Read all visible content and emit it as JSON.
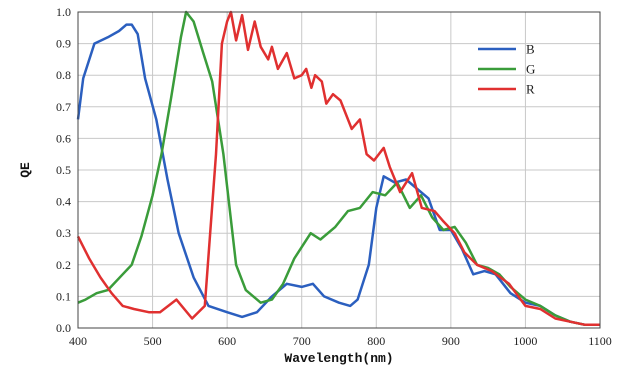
{
  "chart_data": {
    "type": "line",
    "xlabel": "Wavelength(nm)",
    "ylabel": "QE",
    "xlim": [
      400,
      1100
    ],
    "ylim": [
      0.0,
      1.0
    ],
    "xticks": [
      "400",
      "500",
      "600",
      "700",
      "800",
      "900",
      "1000",
      "1100"
    ],
    "yticks": [
      "0.0",
      "0.1",
      "0.2",
      "0.3",
      "0.4",
      "0.5",
      "0.6",
      "0.7",
      "0.8",
      "0.9",
      "1.0"
    ],
    "grid": true,
    "legend_position": "top-right",
    "series": [
      {
        "name": "B",
        "color": "#2b5fbf",
        "x": [
          400,
          407,
          422,
          440,
          455,
          465,
          472,
          480,
          490,
          505,
          520,
          535,
          555,
          575,
          600,
          620,
          640,
          660,
          680,
          700,
          715,
          730,
          750,
          765,
          775,
          790,
          800,
          810,
          825,
          840,
          855,
          870,
          885,
          900,
          915,
          930,
          945,
          960,
          980,
          1000,
          1020,
          1040,
          1060,
          1080,
          1100
        ],
        "y": [
          0.66,
          0.79,
          0.9,
          0.92,
          0.94,
          0.96,
          0.96,
          0.93,
          0.79,
          0.66,
          0.47,
          0.3,
          0.16,
          0.07,
          0.05,
          0.035,
          0.05,
          0.1,
          0.14,
          0.13,
          0.14,
          0.1,
          0.08,
          0.07,
          0.09,
          0.2,
          0.38,
          0.48,
          0.46,
          0.47,
          0.44,
          0.41,
          0.31,
          0.31,
          0.25,
          0.17,
          0.18,
          0.17,
          0.11,
          0.08,
          0.07,
          0.04,
          0.02,
          0.01,
          0.01
        ]
      },
      {
        "name": "G",
        "color": "#3a9c3a",
        "x": [
          400,
          410,
          425,
          440,
          460,
          472,
          485,
          500,
          512,
          525,
          538,
          545,
          555,
          568,
          580,
          595,
          612,
          625,
          645,
          660,
          675,
          690,
          712,
          725,
          745,
          762,
          778,
          795,
          812,
          828,
          845,
          860,
          875,
          890,
          905,
          920,
          935,
          950,
          965,
          980,
          1000,
          1020,
          1040,
          1060,
          1080,
          1100
        ],
        "y": [
          0.08,
          0.09,
          0.11,
          0.12,
          0.17,
          0.2,
          0.29,
          0.42,
          0.55,
          0.73,
          0.92,
          1.0,
          0.97,
          0.87,
          0.78,
          0.55,
          0.2,
          0.12,
          0.08,
          0.09,
          0.14,
          0.22,
          0.3,
          0.28,
          0.32,
          0.37,
          0.38,
          0.43,
          0.42,
          0.46,
          0.38,
          0.42,
          0.35,
          0.31,
          0.32,
          0.27,
          0.2,
          0.19,
          0.17,
          0.13,
          0.09,
          0.07,
          0.04,
          0.02,
          0.01,
          0.01
        ]
      },
      {
        "name": "R",
        "color": "#e03030",
        "x": [
          400,
          415,
          430,
          445,
          460,
          475,
          495,
          510,
          532,
          553,
          570,
          585,
          593,
          600,
          605,
          612,
          620,
          628,
          637,
          645,
          655,
          660,
          668,
          680,
          690,
          700,
          706,
          713,
          718,
          727,
          733,
          742,
          752,
          767,
          778,
          787,
          797,
          810,
          818,
          832,
          848,
          861,
          878,
          889,
          905,
          918,
          935,
          955,
          978,
          1000,
          1020,
          1040,
          1060,
          1080,
          1100
        ],
        "y": [
          0.29,
          0.22,
          0.16,
          0.11,
          0.07,
          0.06,
          0.05,
          0.05,
          0.09,
          0.03,
          0.07,
          0.55,
          0.9,
          0.97,
          1.0,
          0.91,
          0.99,
          0.88,
          0.97,
          0.89,
          0.85,
          0.89,
          0.82,
          0.87,
          0.79,
          0.8,
          0.82,
          0.76,
          0.8,
          0.78,
          0.71,
          0.74,
          0.72,
          0.63,
          0.66,
          0.55,
          0.53,
          0.57,
          0.51,
          0.43,
          0.49,
          0.38,
          0.37,
          0.34,
          0.3,
          0.24,
          0.2,
          0.18,
          0.14,
          0.07,
          0.06,
          0.03,
          0.02,
          0.01,
          0.01
        ]
      }
    ]
  }
}
